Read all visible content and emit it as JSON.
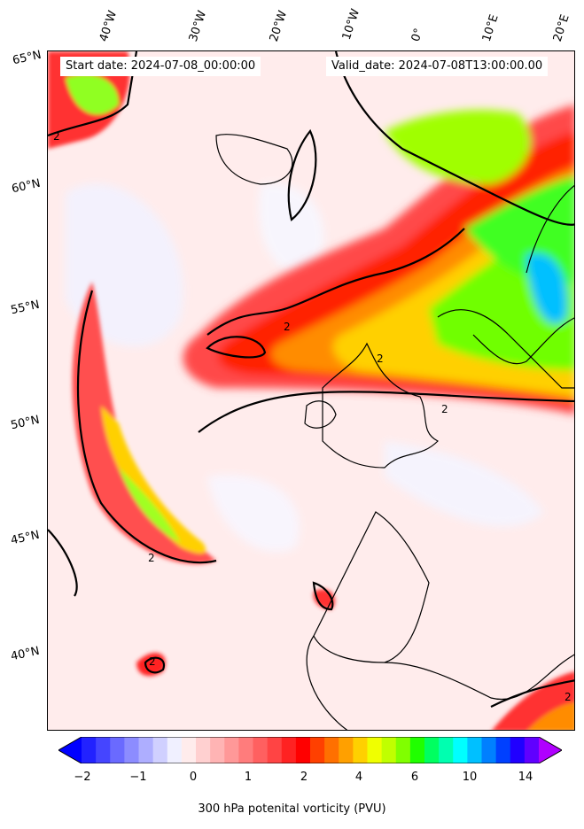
{
  "header": {
    "start_date": "Start date: 2024-07-08_00:00:00",
    "valid_date": "Valid_date: 2024-07-08T13:00:00.00"
  },
  "longitude_labels": [
    "40°W",
    "30°W",
    "20°W",
    "10°W",
    "0°",
    "10°E",
    "20°E"
  ],
  "latitude_labels": [
    "65°N",
    "60°N",
    "55°N",
    "50°N",
    "45°N",
    "40°N"
  ],
  "contour_label": "2",
  "colorbar": {
    "title": "300 hPa potenital vorticity (PVU)",
    "tick_labels": [
      "−2",
      "−1",
      "0",
      "1",
      "2",
      "4",
      "6",
      "10",
      "14"
    ],
    "colors": [
      "#0000ff",
      "#2222ff",
      "#4545ff",
      "#6a6aff",
      "#8c8cff",
      "#aeaeff",
      "#d0d0ff",
      "#f0f0ff",
      "#ffecec",
      "#ffd0d0",
      "#ffb4b4",
      "#ff9898",
      "#ff7c7c",
      "#ff6060",
      "#ff4444",
      "#ff2222",
      "#ff0000",
      "#ff4000",
      "#ff7000",
      "#ffa000",
      "#ffd000",
      "#f0ff00",
      "#c0ff00",
      "#80ff00",
      "#20ff00",
      "#00ff60",
      "#00ffb0",
      "#00ffff",
      "#00c0ff",
      "#0080ff",
      "#0040ff",
      "#2000ff",
      "#6000ff",
      "#b000ff"
    ]
  }
}
